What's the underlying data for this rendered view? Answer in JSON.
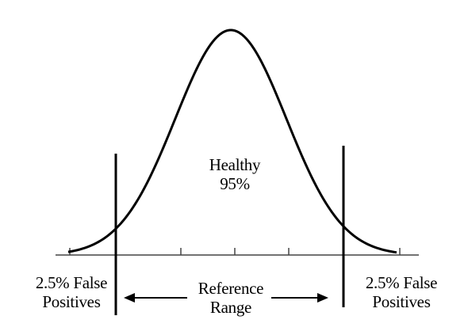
{
  "labels": {
    "center_line1": "Healthy",
    "center_line2": "95%",
    "left_line1": "2.5% False",
    "left_line2": "Positives",
    "right_line1": "2.5% False",
    "right_line2": "Positives",
    "range_line1": "Reference",
    "range_line2": "Range"
  },
  "colors": {
    "ink": "#000000",
    "axis": "#444444",
    "background": "#ffffff"
  }
}
